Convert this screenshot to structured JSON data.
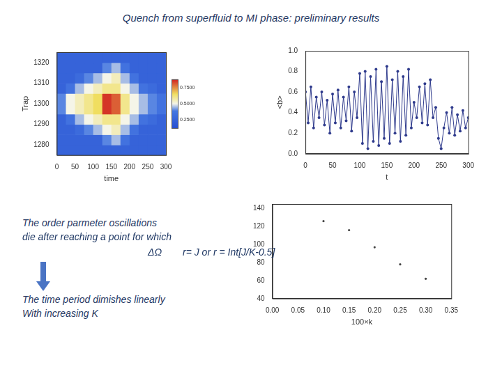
{
  "title": "Quench from superfluid to MI phase: preliminary results",
  "text": {
    "line1": "The order parmeter oscillations",
    "line2": "die after reaching a point for which",
    "symbol": "ΔΩ",
    "condition": "r= J   or  r = Int[J/K-0.5]",
    "line3": "The time period dimishes linearly",
    "line4": "With increasing K"
  },
  "chart_data": [
    {
      "type": "heatmap",
      "x_label": "time",
      "y_label": "Trap",
      "grid": false,
      "x_edges": [
        0,
        25,
        50,
        75,
        100,
        125,
        150,
        175,
        200,
        225,
        250,
        275,
        300
      ],
      "y_edges": [
        1275,
        1280,
        1285,
        1290,
        1295,
        1300,
        1305,
        1310,
        1315,
        1320,
        1325
      ],
      "cells": [
        [
          0.25,
          0.25,
          0.25,
          0.25,
          0.25,
          0.25,
          0.25,
          0.25,
          0.25,
          0.25,
          0.25,
          0.25
        ],
        [
          0.25,
          0.25,
          0.25,
          0.25,
          0.25,
          0.4,
          0.45,
          0.35,
          0.25,
          0.25,
          0.25,
          0.25
        ],
        [
          0.25,
          0.25,
          0.3,
          0.4,
          0.45,
          0.5,
          0.55,
          0.45,
          0.35,
          0.25,
          0.25,
          0.25
        ],
        [
          0.25,
          0.35,
          0.45,
          0.5,
          0.55,
          0.6,
          0.6,
          0.5,
          0.45,
          0.35,
          0.3,
          0.25
        ],
        [
          0.4,
          0.5,
          0.55,
          0.6,
          0.65,
          0.85,
          0.8,
          0.6,
          0.5,
          0.45,
          0.4,
          0.35
        ],
        [
          0.4,
          0.5,
          0.55,
          0.6,
          0.65,
          0.85,
          0.8,
          0.6,
          0.5,
          0.45,
          0.4,
          0.35
        ],
        [
          0.25,
          0.35,
          0.45,
          0.5,
          0.55,
          0.6,
          0.6,
          0.5,
          0.45,
          0.35,
          0.3,
          0.25
        ],
        [
          0.25,
          0.25,
          0.3,
          0.4,
          0.45,
          0.5,
          0.55,
          0.45,
          0.35,
          0.25,
          0.25,
          0.25
        ],
        [
          0.25,
          0.25,
          0.25,
          0.25,
          0.25,
          0.4,
          0.45,
          0.35,
          0.25,
          0.25,
          0.25,
          0.25
        ],
        [
          0.25,
          0.25,
          0.25,
          0.25,
          0.25,
          0.25,
          0.25,
          0.25,
          0.25,
          0.25,
          0.25,
          0.25
        ]
      ],
      "xlim": [
        0,
        300
      ],
      "ylim": [
        1275,
        1325
      ],
      "xticks": [
        0,
        50,
        100,
        150,
        200,
        250,
        300
      ],
      "yticks": [
        1280,
        1290,
        1300,
        1310,
        1320
      ],
      "colorbar": {
        "range": [
          0.125,
          0.875
        ],
        "ticks": [
          {
            "value": 0.25,
            "label": "0.2500"
          },
          {
            "value": 0.5,
            "label": "0.5000"
          },
          {
            "value": 0.75,
            "label": "0.7500"
          }
        ]
      }
    },
    {
      "type": "line",
      "x_label": "t",
      "y_label": "<b>",
      "grid": false,
      "color": "#2e3a8c",
      "marker": "circle",
      "line_style": "solid",
      "x": [
        0,
        5,
        10,
        15,
        20,
        25,
        30,
        35,
        40,
        45,
        50,
        55,
        60,
        65,
        70,
        75,
        80,
        85,
        90,
        95,
        100,
        105,
        110,
        115,
        120,
        125,
        130,
        135,
        140,
        145,
        150,
        155,
        160,
        165,
        170,
        175,
        180,
        185,
        190,
        195,
        200,
        205,
        210,
        215,
        220,
        225,
        230,
        235,
        240,
        245,
        250,
        255,
        260,
        265,
        270,
        275,
        280,
        285,
        290,
        295,
        300
      ],
      "values": [
        0.6,
        0.3,
        0.65,
        0.25,
        0.55,
        0.35,
        0.6,
        0.28,
        0.52,
        0.2,
        0.58,
        0.3,
        0.62,
        0.25,
        0.55,
        0.32,
        0.65,
        0.22,
        0.6,
        0.35,
        0.78,
        0.1,
        0.8,
        0.05,
        0.75,
        0.12,
        0.82,
        0.08,
        0.7,
        0.15,
        0.85,
        0.1,
        0.72,
        0.2,
        0.8,
        0.12,
        0.75,
        0.18,
        0.82,
        0.25,
        0.5,
        0.35,
        0.65,
        0.3,
        0.68,
        0.28,
        0.72,
        0.35,
        0.45,
        0.15,
        0.05,
        0.25,
        0.4,
        0.2,
        0.45,
        0.18,
        0.38,
        0.22,
        0.42,
        0.25,
        0.35
      ],
      "xlim": [
        0,
        300
      ],
      "ylim": [
        0,
        1
      ],
      "xticks": [
        0,
        50,
        100,
        150,
        200,
        250,
        300
      ],
      "yticks": [
        {
          "value": 0,
          "label": "0.0"
        },
        {
          "value": 0.2,
          "label": "0.2"
        },
        {
          "value": 0.4,
          "label": "0.4"
        },
        {
          "value": 0.6,
          "label": "0.6"
        },
        {
          "value": 0.8,
          "label": "0.8"
        },
        {
          "value": 1,
          "label": "1.0"
        }
      ]
    },
    {
      "type": "scatter",
      "x_label": "100×k",
      "grid": false,
      "color": "#444444",
      "marker": "circle",
      "x": [
        0.1,
        0.15,
        0.2,
        0.25,
        0.3
      ],
      "values": [
        126,
        116,
        97,
        78,
        62
      ],
      "xlim": [
        0,
        0.35
      ],
      "ylim": [
        40,
        145
      ],
      "xticks": [
        {
          "value": 0,
          "label": "0.00"
        },
        {
          "value": 0.05,
          "label": "0.05"
        },
        {
          "value": 0.1,
          "label": "0.10"
        },
        {
          "value": 0.15,
          "label": "0.15"
        },
        {
          "value": 0.2,
          "label": "0.20"
        },
        {
          "value": 0.25,
          "label": "0.25"
        },
        {
          "value": 0.3,
          "label": "0.30"
        },
        {
          "value": 0.35,
          "label": "0.35"
        }
      ],
      "yticks": [
        40,
        60,
        80,
        100,
        120,
        140
      ]
    }
  ]
}
